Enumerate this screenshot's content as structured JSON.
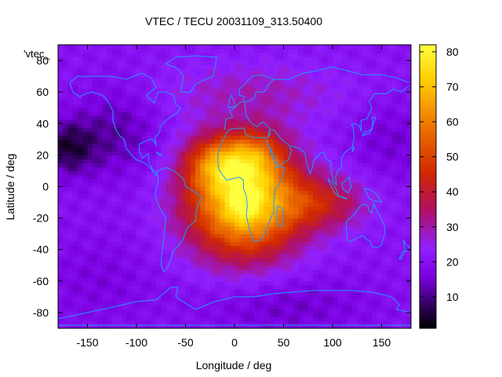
{
  "chart_data": {
    "type": "heatmap",
    "title": "VTEC / TECU 20031109_313.50400",
    "xlabel": "Longitude / deg",
    "ylabel": "Latitude / deg",
    "key_label": "'vtec_",
    "xlim": [
      -180,
      180
    ],
    "ylim": [
      -90,
      90
    ],
    "x_ticks": [
      -150,
      -100,
      -50,
      0,
      50,
      100,
      150
    ],
    "y_ticks": [
      -80,
      -60,
      -40,
      -20,
      0,
      20,
      40,
      60,
      80
    ],
    "colorbar": {
      "min": 1,
      "max": 82,
      "ticks": [
        10,
        20,
        30,
        40,
        50,
        60,
        70,
        80
      ]
    },
    "grid": false,
    "legend": "top-left",
    "colormap": "black-purple-red-orange-yellow",
    "colors": {
      "c0": "#000000",
      "c1": "#2a0050",
      "c2": "#7a00e0",
      "c3": "#9020ff",
      "c4": "#b01060",
      "c5": "#d02800",
      "c6": "#f07800",
      "c7": "#ffd000",
      "c8": "#ffff40",
      "coast": "#1e9bff"
    },
    "peaks": [
      {
        "lon": 10,
        "lat": -10,
        "sx": 40,
        "sy": 24,
        "value": 56
      },
      {
        "lon": -20,
        "lat": 15,
        "sx": 22,
        "sy": 12,
        "value": 24
      },
      {
        "lon": 20,
        "lat": 20,
        "sx": 22,
        "sy": 12,
        "value": 22
      },
      {
        "lon": 90,
        "lat": -10,
        "sx": 32,
        "sy": 12,
        "value": 18
      },
      {
        "lon": 10,
        "lat": -10,
        "sx": 9,
        "sy": 7,
        "value": 14
      },
      {
        "lon": 20,
        "lat": 60,
        "sx": 70,
        "sy": 14,
        "value": 8
      }
    ],
    "background": 20,
    "low_regions": [
      {
        "lon": -170,
        "lat": 25,
        "sx": 20,
        "sy": 12,
        "value": -14
      },
      {
        "lon": -120,
        "lat": 35,
        "sx": 30,
        "sy": 20,
        "value": -8
      },
      {
        "lon": 50,
        "lat": -75,
        "sx": 60,
        "sy": 14,
        "value": -6
      },
      {
        "lon": 160,
        "lat": 30,
        "sx": 30,
        "sy": 18,
        "value": -5
      },
      {
        "lon": -140,
        "lat": -60,
        "sx": 40,
        "sy": 20,
        "value": -4
      }
    ]
  }
}
